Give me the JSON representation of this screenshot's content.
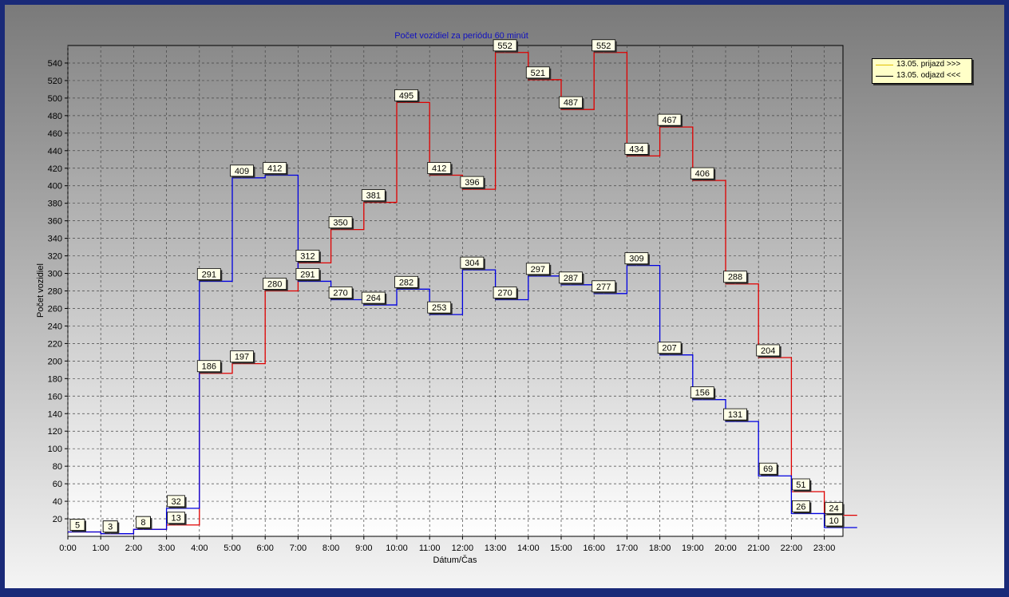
{
  "chart_data": {
    "type": "line",
    "step": true,
    "title": "Počet vozidiel za periódu 60 minút",
    "xlabel": "Dátum/Čas",
    "ylabel": "Počet vozidiel",
    "ylim": [
      0,
      560
    ],
    "yticks": [
      20,
      40,
      60,
      80,
      100,
      120,
      140,
      160,
      180,
      200,
      220,
      240,
      260,
      280,
      300,
      320,
      340,
      360,
      380,
      400,
      420,
      440,
      460,
      480,
      500,
      520,
      540
    ],
    "categories": [
      "0:00",
      "1:00",
      "2:00",
      "3:00",
      "4:00",
      "5:00",
      "6:00",
      "7:00",
      "8:00",
      "9:00",
      "10:00",
      "11:00",
      "12:00",
      "13:00",
      "14:00",
      "15:00",
      "16:00",
      "17:00",
      "18:00",
      "19:00",
      "20:00",
      "21:00",
      "22:00",
      "23:00"
    ],
    "grid": true,
    "legend": "top-right",
    "series": [
      {
        "name": "13.05.  prijazd >>>",
        "color": "#e00000",
        "values": [
          5,
          3,
          8,
          13,
          186,
          197,
          280,
          312,
          350,
          381,
          495,
          412,
          396,
          552,
          521,
          487,
          552,
          434,
          467,
          406,
          288,
          204,
          51,
          24
        ]
      },
      {
        "name": "13.05.  odjazd <<<",
        "color": "#0000e0",
        "values": [
          5,
          3,
          8,
          32,
          291,
          409,
          412,
          291,
          270,
          264,
          282,
          253,
          304,
          270,
          297,
          287,
          277,
          309,
          207,
          156,
          131,
          69,
          26,
          10
        ]
      }
    ]
  }
}
